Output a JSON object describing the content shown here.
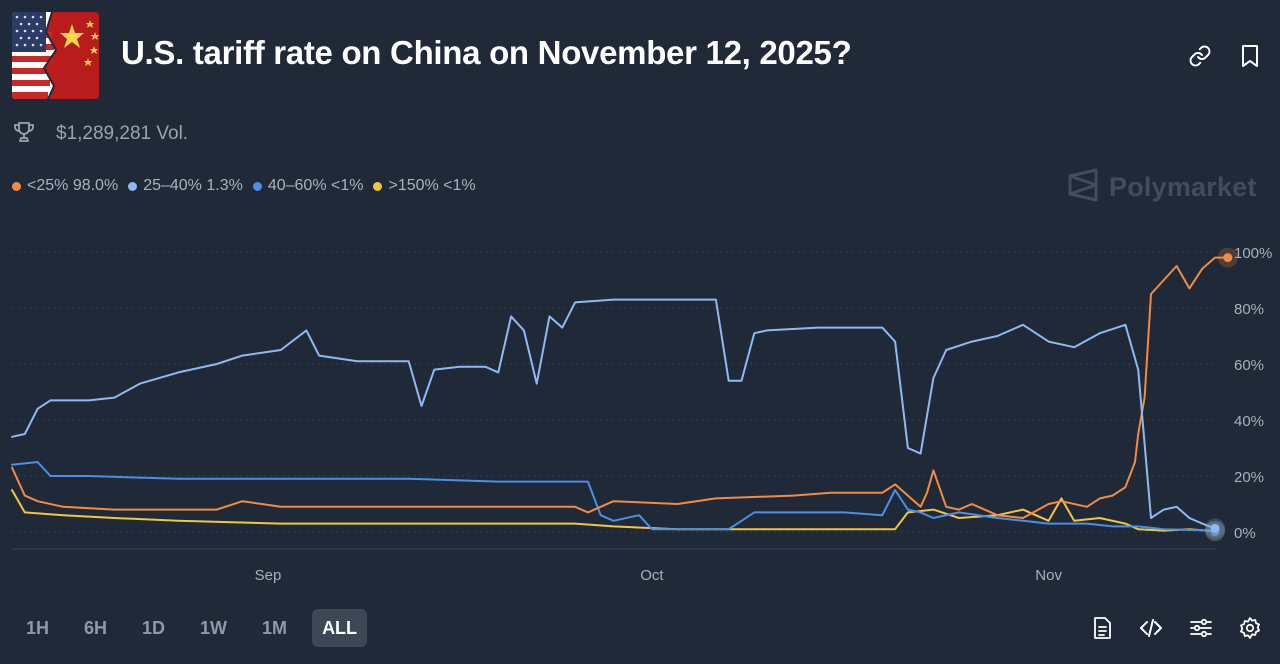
{
  "header": {
    "title": "U.S. tariff rate on China on November 12, 2025?",
    "image_icon": "us-china-flags-image",
    "link_icon": "link-icon",
    "bookmark_icon": "bookmark-icon"
  },
  "stats": {
    "volume": "$1,289,281 Vol.",
    "volume_icon": "trophy-icon"
  },
  "legend": [
    {
      "label": "<25% 98.0%",
      "color": "#f58a42"
    },
    {
      "label": "25–40% 1.3%",
      "color": "#8fb8f5"
    },
    {
      "label": "40–60% <1%",
      "color": "#4a8fe8"
    },
    {
      "label": ">150% <1%",
      "color": "#f4c63d"
    }
  ],
  "brand": {
    "name": "Polymarket",
    "icon": "polymarket-logo-icon"
  },
  "ranges": [
    {
      "label": "1H",
      "active": false
    },
    {
      "label": "6H",
      "active": false
    },
    {
      "label": "1D",
      "active": false
    },
    {
      "label": "1W",
      "active": false
    },
    {
      "label": "1M",
      "active": false
    },
    {
      "label": "ALL",
      "active": true
    }
  ],
  "tools": [
    "document-icon",
    "embed-code-icon",
    "sliders-icon",
    "settings-icon"
  ],
  "chart_data": {
    "type": "line",
    "x_start": "2025-08-12",
    "x_end": "2025-11-06",
    "x_ticks": [
      {
        "date": "2025-09-01",
        "label": "Sep"
      },
      {
        "date": "2025-10-01",
        "label": "Oct"
      },
      {
        "date": "2025-11-01",
        "label": "Nov"
      }
    ],
    "y_ticks": [
      "0%",
      "20%",
      "40%",
      "60%",
      "80%",
      "100%"
    ],
    "ylim": [
      0,
      100
    ],
    "grid": true,
    "y_axis_side": "right",
    "series": [
      {
        "name": "<25%",
        "color": "#f58a42",
        "points": [
          [
            "2025-08-12",
            23
          ],
          [
            "2025-08-13",
            13
          ],
          [
            "2025-08-14",
            11
          ],
          [
            "2025-08-16",
            9
          ],
          [
            "2025-08-20",
            8
          ],
          [
            "2025-08-28",
            8
          ],
          [
            "2025-08-30",
            11
          ],
          [
            "2025-09-02",
            9
          ],
          [
            "2025-09-10",
            9
          ],
          [
            "2025-09-25",
            9
          ],
          [
            "2025-09-26",
            7
          ],
          [
            "2025-09-28",
            11
          ],
          [
            "2025-10-03",
            10
          ],
          [
            "2025-10-06",
            12
          ],
          [
            "2025-10-12",
            13
          ],
          [
            "2025-10-15",
            14
          ],
          [
            "2025-10-19",
            14
          ],
          [
            "2025-10-20",
            17
          ],
          [
            "2025-10-21",
            13
          ],
          [
            "2025-10-22",
            9
          ],
          [
            "2025-10-22 12:00",
            14
          ],
          [
            "2025-10-23",
            22
          ],
          [
            "2025-10-24",
            9
          ],
          [
            "2025-10-25",
            8
          ],
          [
            "2025-10-26",
            10
          ],
          [
            "2025-10-28",
            6
          ],
          [
            "2025-10-30",
            5
          ],
          [
            "2025-11-01",
            10
          ],
          [
            "2025-11-02",
            11
          ],
          [
            "2025-11-04",
            9
          ],
          [
            "2025-11-05",
            12
          ],
          [
            "2025-11-06",
            13
          ],
          [
            "2025-11-07",
            16
          ],
          [
            "2025-11-07 18:00",
            25
          ],
          [
            "2025-11-08",
            35
          ],
          [
            "2025-11-08 12:00",
            48
          ],
          [
            "2025-11-09",
            85
          ],
          [
            "2025-11-10",
            90
          ],
          [
            "2025-11-11",
            95
          ],
          [
            "2025-11-12",
            87
          ],
          [
            "2025-11-13",
            94
          ],
          [
            "2025-11-14",
            98
          ],
          [
            "2025-11-15",
            98
          ]
        ]
      },
      {
        "name": "25–40%",
        "color": "#8fb8f5",
        "points": [
          [
            "2025-08-12",
            34
          ],
          [
            "2025-08-13",
            35
          ],
          [
            "2025-08-14",
            44
          ],
          [
            "2025-08-15",
            47
          ],
          [
            "2025-08-18",
            47
          ],
          [
            "2025-08-20",
            48
          ],
          [
            "2025-08-22",
            53
          ],
          [
            "2025-08-25",
            57
          ],
          [
            "2025-08-28",
            60
          ],
          [
            "2025-08-30",
            63
          ],
          [
            "2025-09-02",
            65
          ],
          [
            "2025-09-04",
            72
          ],
          [
            "2025-09-05",
            63
          ],
          [
            "2025-09-08",
            61
          ],
          [
            "2025-09-12",
            61
          ],
          [
            "2025-09-13",
            45
          ],
          [
            "2025-09-14",
            58
          ],
          [
            "2025-09-16",
            59
          ],
          [
            "2025-09-18",
            59
          ],
          [
            "2025-09-19",
            57
          ],
          [
            "2025-09-20",
            77
          ],
          [
            "2025-09-21",
            72
          ],
          [
            "2025-09-22",
            53
          ],
          [
            "2025-09-23",
            77
          ],
          [
            "2025-09-24",
            73
          ],
          [
            "2025-09-25",
            82
          ],
          [
            "2025-09-28",
            83
          ],
          [
            "2025-10-06",
            83
          ],
          [
            "2025-10-07",
            54
          ],
          [
            "2025-10-08",
            54
          ],
          [
            "2025-10-09",
            71
          ],
          [
            "2025-10-10",
            72
          ],
          [
            "2025-10-14",
            73
          ],
          [
            "2025-10-19",
            73
          ],
          [
            "2025-10-20",
            68
          ],
          [
            "2025-10-21",
            30
          ],
          [
            "2025-10-22",
            28
          ],
          [
            "2025-10-23",
            55
          ],
          [
            "2025-10-24",
            65
          ],
          [
            "2025-10-26",
            68
          ],
          [
            "2025-10-28",
            70
          ],
          [
            "2025-10-30",
            74
          ],
          [
            "2025-11-01",
            68
          ],
          [
            "2025-11-03",
            66
          ],
          [
            "2025-11-05",
            71
          ],
          [
            "2025-11-07",
            74
          ],
          [
            "2025-11-08",
            58
          ],
          [
            "2025-11-09",
            5
          ],
          [
            "2025-11-10",
            8
          ],
          [
            "2025-11-11",
            9
          ],
          [
            "2025-11-12",
            5
          ],
          [
            "2025-11-13",
            3
          ],
          [
            "2025-11-14",
            1.3
          ]
        ]
      },
      {
        "name": "40–60%",
        "color": "#4a8fe8",
        "points": [
          [
            "2025-08-12",
            24
          ],
          [
            "2025-08-14",
            25
          ],
          [
            "2025-08-15",
            20
          ],
          [
            "2025-08-18",
            20
          ],
          [
            "2025-08-25",
            19
          ],
          [
            "2025-09-12",
            19
          ],
          [
            "2025-09-19",
            18
          ],
          [
            "2025-09-26",
            18
          ],
          [
            "2025-09-27",
            6
          ],
          [
            "2025-09-28",
            4
          ],
          [
            "2025-09-30",
            6
          ],
          [
            "2025-10-01",
            1
          ],
          [
            "2025-10-05",
            1
          ],
          [
            "2025-10-07",
            1
          ],
          [
            "2025-10-09",
            7
          ],
          [
            "2025-10-16",
            7
          ],
          [
            "2025-10-19",
            6
          ],
          [
            "2025-10-20",
            15
          ],
          [
            "2025-10-21",
            8
          ],
          [
            "2025-10-22",
            7
          ],
          [
            "2025-10-23",
            5
          ],
          [
            "2025-10-25",
            7
          ],
          [
            "2025-10-28",
            5
          ],
          [
            "2025-10-30",
            4
          ],
          [
            "2025-11-01",
            3
          ],
          [
            "2025-11-04",
            3
          ],
          [
            "2025-11-06",
            2
          ],
          [
            "2025-11-08",
            2
          ],
          [
            "2025-11-10",
            1
          ],
          [
            "2025-11-14",
            0.5
          ]
        ]
      },
      {
        "name": ">150%",
        "color": "#f4c63d",
        "points": [
          [
            "2025-08-12",
            15
          ],
          [
            "2025-08-13",
            7
          ],
          [
            "2025-08-16",
            6
          ],
          [
            "2025-08-20",
            5
          ],
          [
            "2025-08-25",
            4
          ],
          [
            "2025-09-02",
            3
          ],
          [
            "2025-09-15",
            3
          ],
          [
            "2025-09-25",
            3
          ],
          [
            "2025-09-28",
            2
          ],
          [
            "2025-10-03",
            1
          ],
          [
            "2025-10-10",
            1
          ],
          [
            "2025-10-20",
            1
          ],
          [
            "2025-10-21",
            7
          ],
          [
            "2025-10-23",
            8
          ],
          [
            "2025-10-25",
            5
          ],
          [
            "2025-10-28",
            6
          ],
          [
            "2025-10-30",
            8
          ],
          [
            "2025-11-01",
            4
          ],
          [
            "2025-11-02",
            12
          ],
          [
            "2025-11-03",
            4
          ],
          [
            "2025-11-05",
            5
          ],
          [
            "2025-11-07",
            3
          ],
          [
            "2025-11-08",
            1
          ],
          [
            "2025-11-10",
            0.5
          ],
          [
            "2025-11-12",
            1
          ],
          [
            "2025-11-14",
            0.3
          ]
        ]
      }
    ]
  }
}
